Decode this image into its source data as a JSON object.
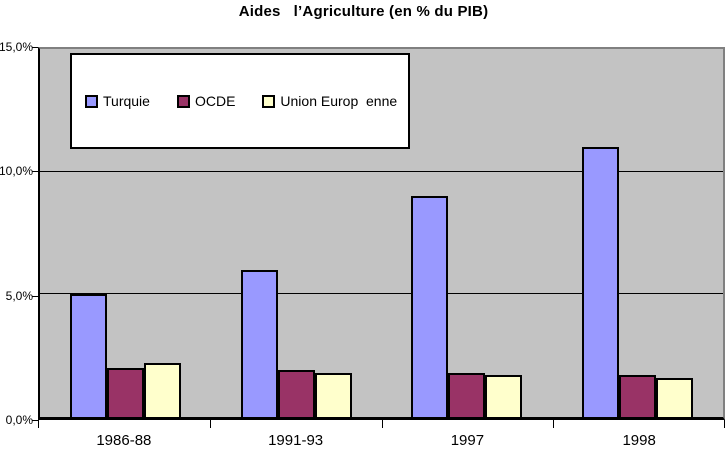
{
  "chart_data": {
    "type": "bar",
    "title": "Aides   l’Agriculture (en % du PIB)",
    "categories": [
      "1986-88",
      "1991-93",
      "1997",
      "1998"
    ],
    "series": [
      {
        "name": "Turquie",
        "color": "#9999FF",
        "values": [
          5.0,
          6.0,
          9.0,
          11.0
        ]
      },
      {
        "name": "OCDE",
        "color": "#993366",
        "values": [
          2.0,
          1.9,
          1.8,
          1.7
        ]
      },
      {
        "name": "Union Europ  enne",
        "color": "#FFFFCC",
        "values": [
          2.2,
          1.8,
          1.7,
          1.6
        ]
      }
    ],
    "xlabel": "",
    "ylabel": "",
    "ylim": [
      0,
      15
    ],
    "yticks": [
      {
        "value": 0,
        "label": "0,0%"
      },
      {
        "value": 5,
        "label": "5,0%"
      },
      {
        "value": 10,
        "label": "10,0%"
      },
      {
        "value": 15,
        "label": "15,0%"
      }
    ],
    "gridlines": [
      5,
      10
    ],
    "grid": true,
    "legend_position": "top-left",
    "plot_background": "#C0C0C0",
    "bar_border_color": "#000000"
  }
}
